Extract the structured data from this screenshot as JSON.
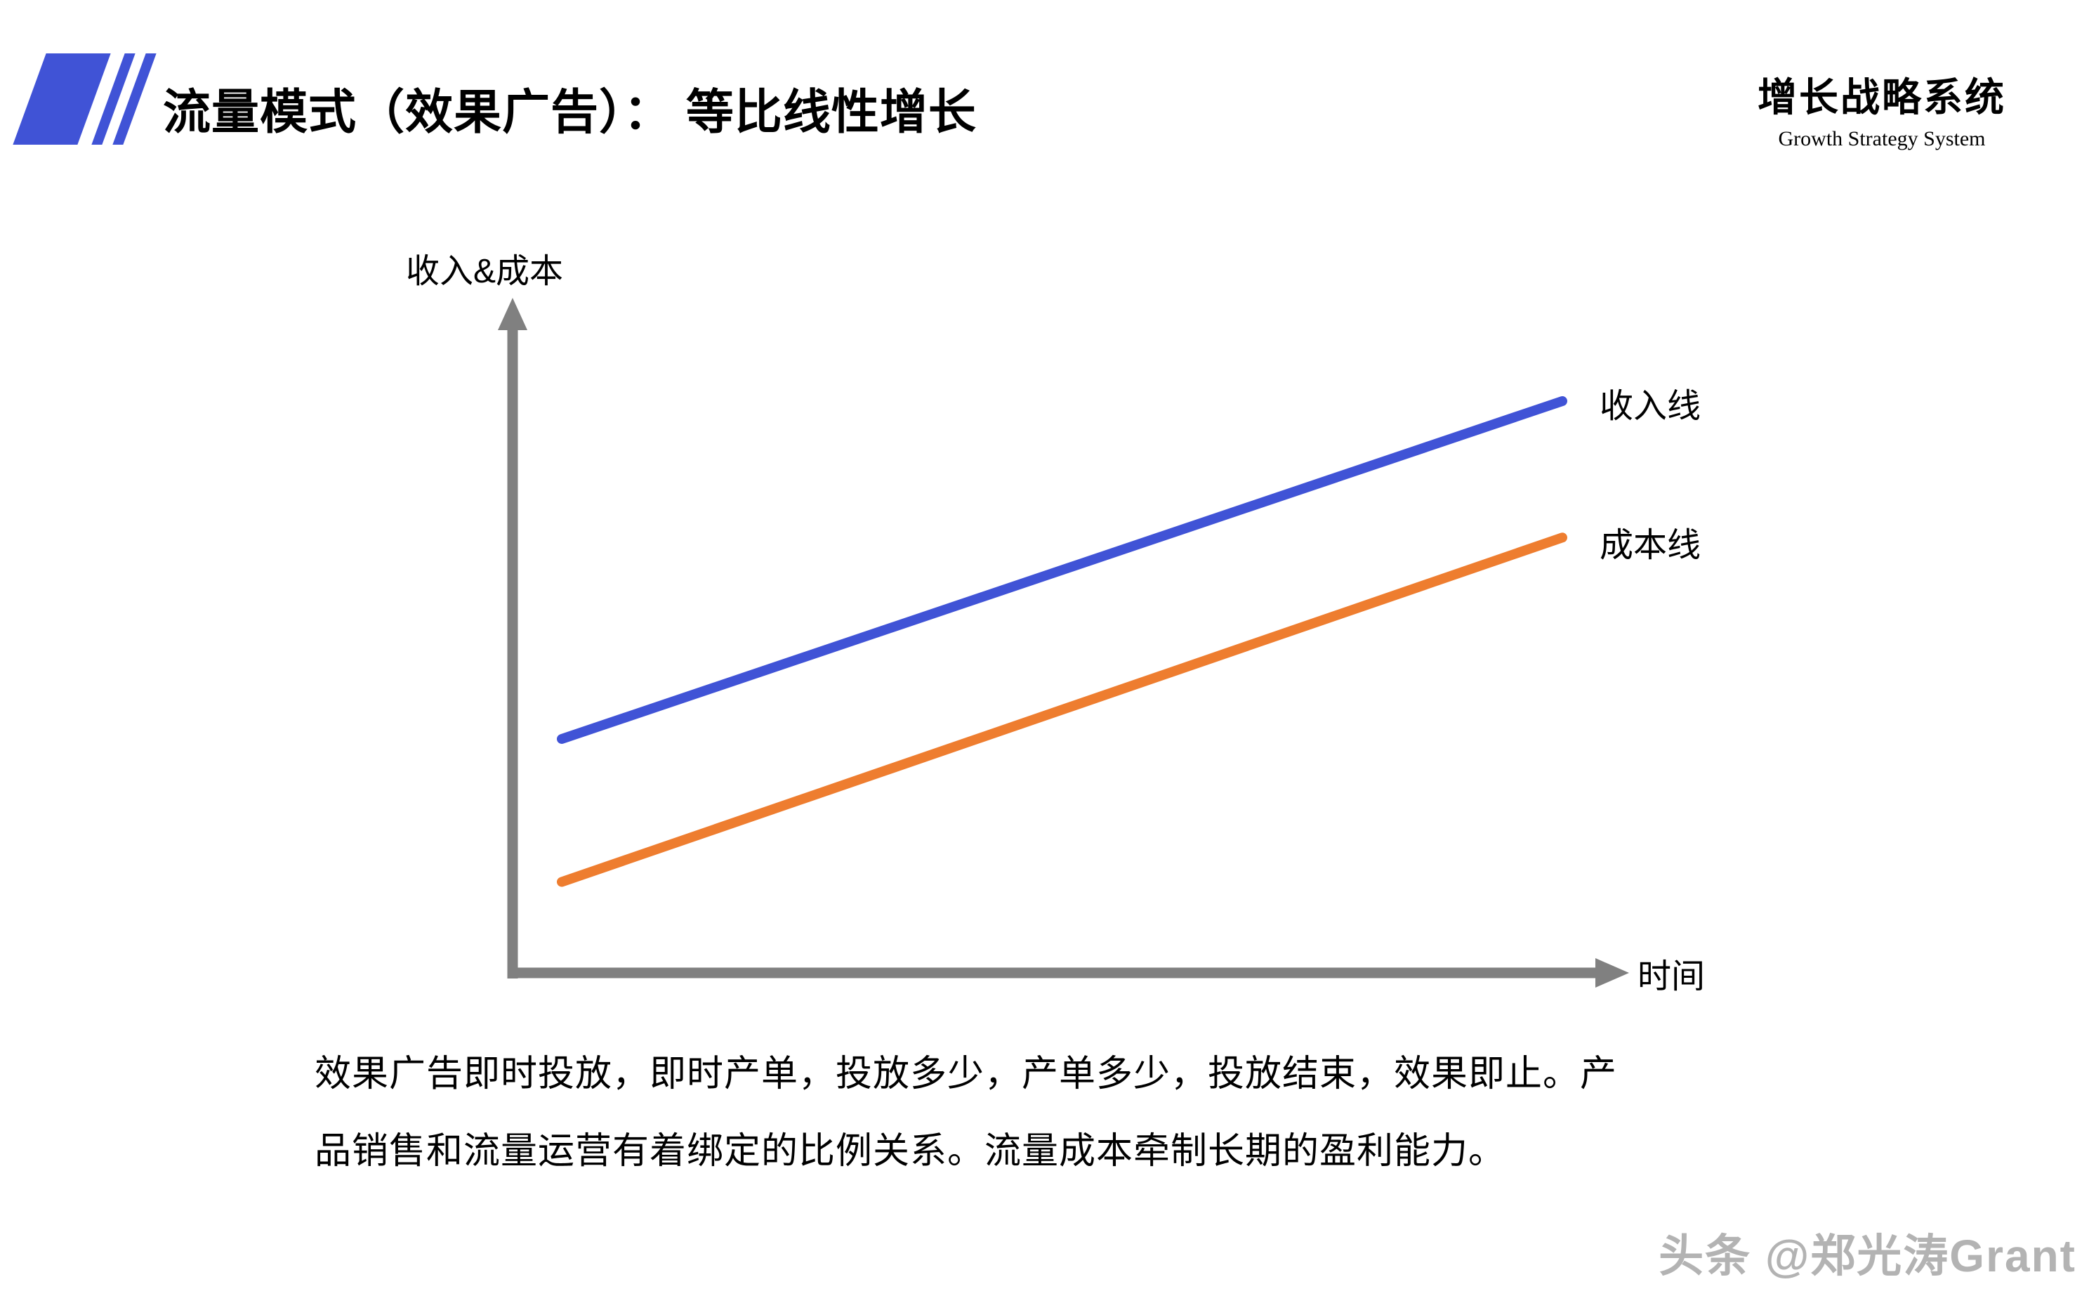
{
  "header": {
    "title": "流量模式（效果广告）： 等比线性增长",
    "brand": {
      "cn": "增长战略系统",
      "en": "Growth Strategy System"
    }
  },
  "chart_data": {
    "type": "line",
    "title": "",
    "xlabel": "时间",
    "ylabel": "收入&成本",
    "x": [
      0,
      1
    ],
    "ylim": [
      0,
      100
    ],
    "grid": false,
    "legend_position": "right of line endpoints",
    "series": [
      {
        "name": "收入线",
        "values": [
          36,
          88
        ],
        "color": "#4053d6"
      },
      {
        "name": "成本线",
        "values": [
          14,
          67
        ],
        "color": "#ee7d2f"
      }
    ]
  },
  "caption": {
    "line1": "效果广告即时投放，即时产单，投放多少，产单多少，投放结束，效果即止。产",
    "line2": "品销售和流量运营有着绑定的比例关系。流量成本牵制长期的盈利能力。"
  },
  "watermark": "头条 @郑光涛Grant",
  "colors": {
    "accent_blue": "#4053d6",
    "accent_orange": "#ee7d2f",
    "axis_gray": "#808080",
    "watermark_gray": "#b3b3b3"
  }
}
